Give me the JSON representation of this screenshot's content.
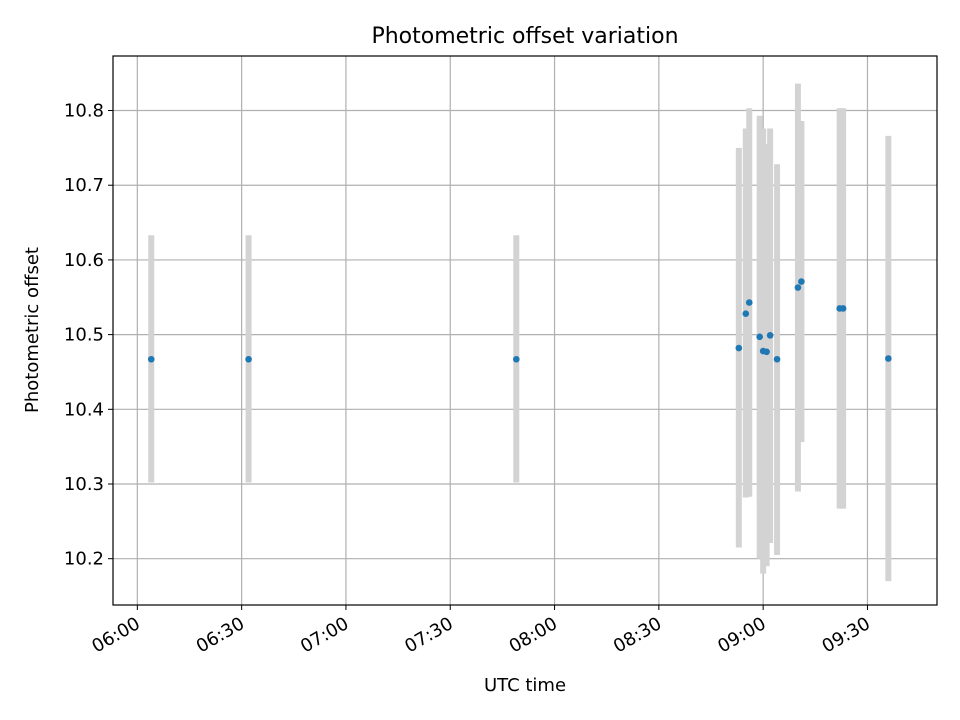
{
  "chart_data": {
    "type": "scatter",
    "title": "Photometric offset variation",
    "xlabel": "UTC time",
    "ylabel": "Photometric offset",
    "x_ticks": [
      "06:00",
      "06:30",
      "07:00",
      "07:30",
      "08:00",
      "08:30",
      "09:00",
      "09:30"
    ],
    "y_ticks": [
      "10.2",
      "10.3",
      "10.4",
      "10.5",
      "10.6",
      "10.7",
      "10.8"
    ],
    "xlim": [
      "05:53",
      "09:50"
    ],
    "ylim": [
      10.138,
      10.873
    ],
    "grid": true,
    "error_bars": true,
    "series": [
      {
        "points": [
          {
            "x": "06:04",
            "y": 10.467,
            "ylow": 10.302,
            "yhigh": 10.633
          },
          {
            "x": "06:32",
            "y": 10.467,
            "ylow": 10.302,
            "yhigh": 10.633
          },
          {
            "x": "07:49",
            "y": 10.467,
            "ylow": 10.302,
            "yhigh": 10.633
          },
          {
            "x": "08:53",
            "y": 10.482,
            "ylow": 10.215,
            "yhigh": 10.75
          },
          {
            "x": "08:55",
            "y": 10.528,
            "ylow": 10.282,
            "yhigh": 10.776
          },
          {
            "x": "08:56",
            "y": 10.543,
            "ylow": 10.283,
            "yhigh": 10.803
          },
          {
            "x": "08:59",
            "y": 10.497,
            "ylow": 10.2,
            "yhigh": 10.793
          },
          {
            "x": "09:00",
            "y": 10.478,
            "ylow": 10.18,
            "yhigh": 10.776
          },
          {
            "x": "09:01",
            "y": 10.477,
            "ylow": 10.19,
            "yhigh": 10.755
          },
          {
            "x": "09:02",
            "y": 10.499,
            "ylow": 10.221,
            "yhigh": 10.776
          },
          {
            "x": "09:04",
            "y": 10.467,
            "ylow": 10.205,
            "yhigh": 10.728
          },
          {
            "x": "09:10",
            "y": 10.563,
            "ylow": 10.29,
            "yhigh": 10.836
          },
          {
            "x": "09:11",
            "y": 10.571,
            "ylow": 10.356,
            "yhigh": 10.786
          },
          {
            "x": "09:22",
            "y": 10.535,
            "ylow": 10.267,
            "yhigh": 10.803
          },
          {
            "x": "09:23",
            "y": 10.535,
            "ylow": 10.267,
            "yhigh": 10.803
          },
          {
            "x": "09:36",
            "y": 10.468,
            "ylow": 10.17,
            "yhigh": 10.766
          }
        ]
      }
    ]
  }
}
